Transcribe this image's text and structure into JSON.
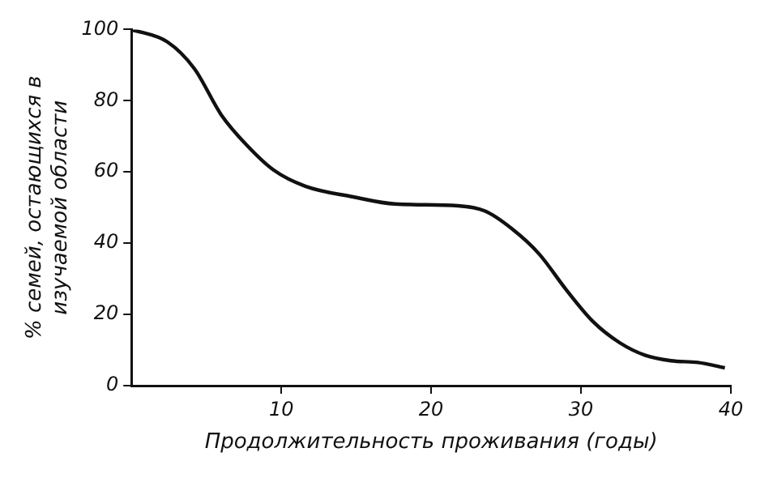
{
  "chart_data": {
    "type": "line",
    "xlabel": "Продолжительность проживания (годы)",
    "ylabel": "% семей, остающихся в изучаемой области",
    "x": [
      0,
      2.4,
      4.2,
      6,
      7.7,
      9.5,
      11.6,
      14.8,
      17.6,
      21.8,
      23.6,
      25.4,
      27.2,
      29,
      30.8,
      32.6,
      34.3,
      36,
      37.8,
      39.6
    ],
    "series": [
      {
        "color": "#111111",
        "values": [
          100,
          96.5,
          89,
          76,
          67.5,
          60.5,
          56,
          53,
          51,
          50.5,
          49,
          44,
          37,
          27,
          18,
          12,
          8.5,
          7,
          6.5,
          5
        ]
      }
    ],
    "xlim": [
      0,
      40
    ],
    "xticks": [
      10,
      20,
      30,
      40
    ],
    "ylim": [
      0,
      100
    ],
    "yticks": [
      0,
      20,
      40,
      60,
      80,
      100
    ],
    "grid": false,
    "legend": false,
    "marker": "none",
    "line_style": "solid"
  }
}
